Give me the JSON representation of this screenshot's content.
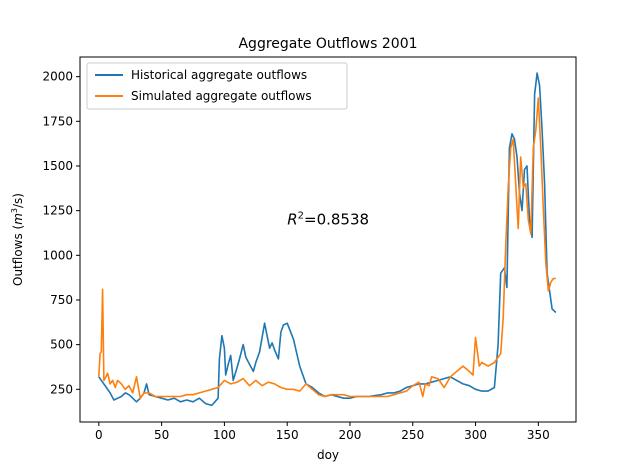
{
  "chart_data": {
    "type": "line",
    "title": "Aggregate Outflows 2001",
    "xlabel": "doy",
    "ylabel": "Outflows (m³/s)",
    "ylabel_main": "Outflows (",
    "ylabel_unit_base": "m",
    "ylabel_unit_exp": "3",
    "ylabel_unit_rest": "/s)",
    "xlim": [
      -15,
      380
    ],
    "ylim": [
      67,
      2110
    ],
    "xticks": [
      0,
      50,
      100,
      150,
      200,
      250,
      300,
      350
    ],
    "yticks": [
      250,
      500,
      750,
      1000,
      1250,
      1500,
      1750,
      2000
    ],
    "grid": false,
    "legend_position": "upper-left",
    "annotation": {
      "text_main": "R",
      "text_sup": "2",
      "text_rest": "=0.8538",
      "x": 150,
      "y": 1200
    },
    "series": [
      {
        "name": "Historical aggregate outflows",
        "color": "#1f77b4",
        "x": [
          0,
          3,
          6,
          9,
          12,
          15,
          18,
          21,
          24,
          27,
          30,
          33,
          36,
          38,
          40,
          45,
          50,
          55,
          60,
          65,
          70,
          75,
          80,
          85,
          90,
          95,
          96,
          98,
          100,
          101,
          103,
          105,
          107,
          110,
          112,
          115,
          117,
          120,
          123,
          125,
          128,
          130,
          132,
          134,
          136,
          138,
          140,
          143,
          145,
          147,
          150,
          155,
          160,
          165,
          170,
          175,
          180,
          185,
          190,
          195,
          200,
          205,
          210,
          215,
          220,
          225,
          230,
          235,
          240,
          245,
          250,
          255,
          260,
          265,
          270,
          275,
          280,
          285,
          290,
          295,
          300,
          305,
          310,
          315,
          318,
          320,
          323,
          325,
          327,
          329,
          331,
          333,
          335,
          337,
          339,
          341,
          343,
          345,
          347,
          349,
          351,
          353,
          355,
          357,
          359,
          361,
          364
        ],
        "y": [
          320,
          290,
          260,
          230,
          190,
          200,
          210,
          230,
          220,
          200,
          180,
          200,
          230,
          280,
          220,
          210,
          200,
          190,
          200,
          180,
          190,
          180,
          200,
          170,
          160,
          200,
          420,
          550,
          480,
          330,
          390,
          440,
          300,
          370,
          420,
          500,
          430,
          390,
          350,
          400,
          460,
          540,
          620,
          550,
          480,
          510,
          470,
          420,
          570,
          610,
          620,
          530,
          380,
          280,
          260,
          230,
          210,
          220,
          210,
          200,
          200,
          210,
          210,
          210,
          215,
          220,
          230,
          230,
          240,
          260,
          270,
          280,
          280,
          290,
          300,
          310,
          320,
          300,
          280,
          270,
          250,
          240,
          240,
          260,
          500,
          900,
          930,
          820,
          1600,
          1680,
          1650,
          1550,
          1350,
          1250,
          1480,
          1500,
          1200,
          1100,
          1900,
          2020,
          1950,
          1700,
          1400,
          900,
          800,
          700,
          680
        ]
      },
      {
        "name": "Simulated aggregate outflows",
        "color": "#ff7f0e",
        "x": [
          0,
          1,
          2,
          3,
          4,
          5,
          7,
          9,
          11,
          13,
          15,
          18,
          21,
          24,
          27,
          30,
          33,
          36,
          40,
          45,
          50,
          55,
          60,
          65,
          70,
          75,
          80,
          85,
          90,
          95,
          100,
          105,
          110,
          115,
          120,
          125,
          130,
          135,
          140,
          145,
          150,
          155,
          160,
          165,
          170,
          175,
          180,
          185,
          190,
          195,
          200,
          205,
          210,
          215,
          220,
          225,
          230,
          235,
          240,
          245,
          250,
          255,
          258,
          260,
          263,
          265,
          270,
          275,
          280,
          285,
          290,
          295,
          298,
          300,
          303,
          305,
          310,
          315,
          320,
          322,
          324,
          326,
          328,
          330,
          332,
          334,
          336,
          338,
          340,
          342,
          344,
          346,
          348,
          350,
          352,
          354,
          356,
          358,
          360,
          362,
          364
        ],
        "y": [
          320,
          450,
          460,
          810,
          300,
          310,
          340,
          280,
          300,
          260,
          300,
          280,
          250,
          270,
          230,
          320,
          200,
          230,
          230,
          210,
          210,
          210,
          210,
          210,
          220,
          220,
          230,
          240,
          250,
          260,
          300,
          280,
          290,
          310,
          270,
          300,
          270,
          290,
          280,
          260,
          250,
          250,
          240,
          280,
          250,
          220,
          210,
          220,
          220,
          220,
          210,
          210,
          210,
          210,
          210,
          210,
          210,
          220,
          230,
          240,
          270,
          290,
          210,
          280,
          270,
          320,
          310,
          260,
          320,
          350,
          380,
          350,
          330,
          540,
          380,
          400,
          380,
          400,
          450,
          650,
          1050,
          1380,
          1600,
          1650,
          1400,
          1150,
          1550,
          1380,
          1400,
          1200,
          1120,
          1600,
          1700,
          1880,
          1600,
          1250,
          950,
          800,
          850,
          870,
          870
        ]
      }
    ]
  }
}
